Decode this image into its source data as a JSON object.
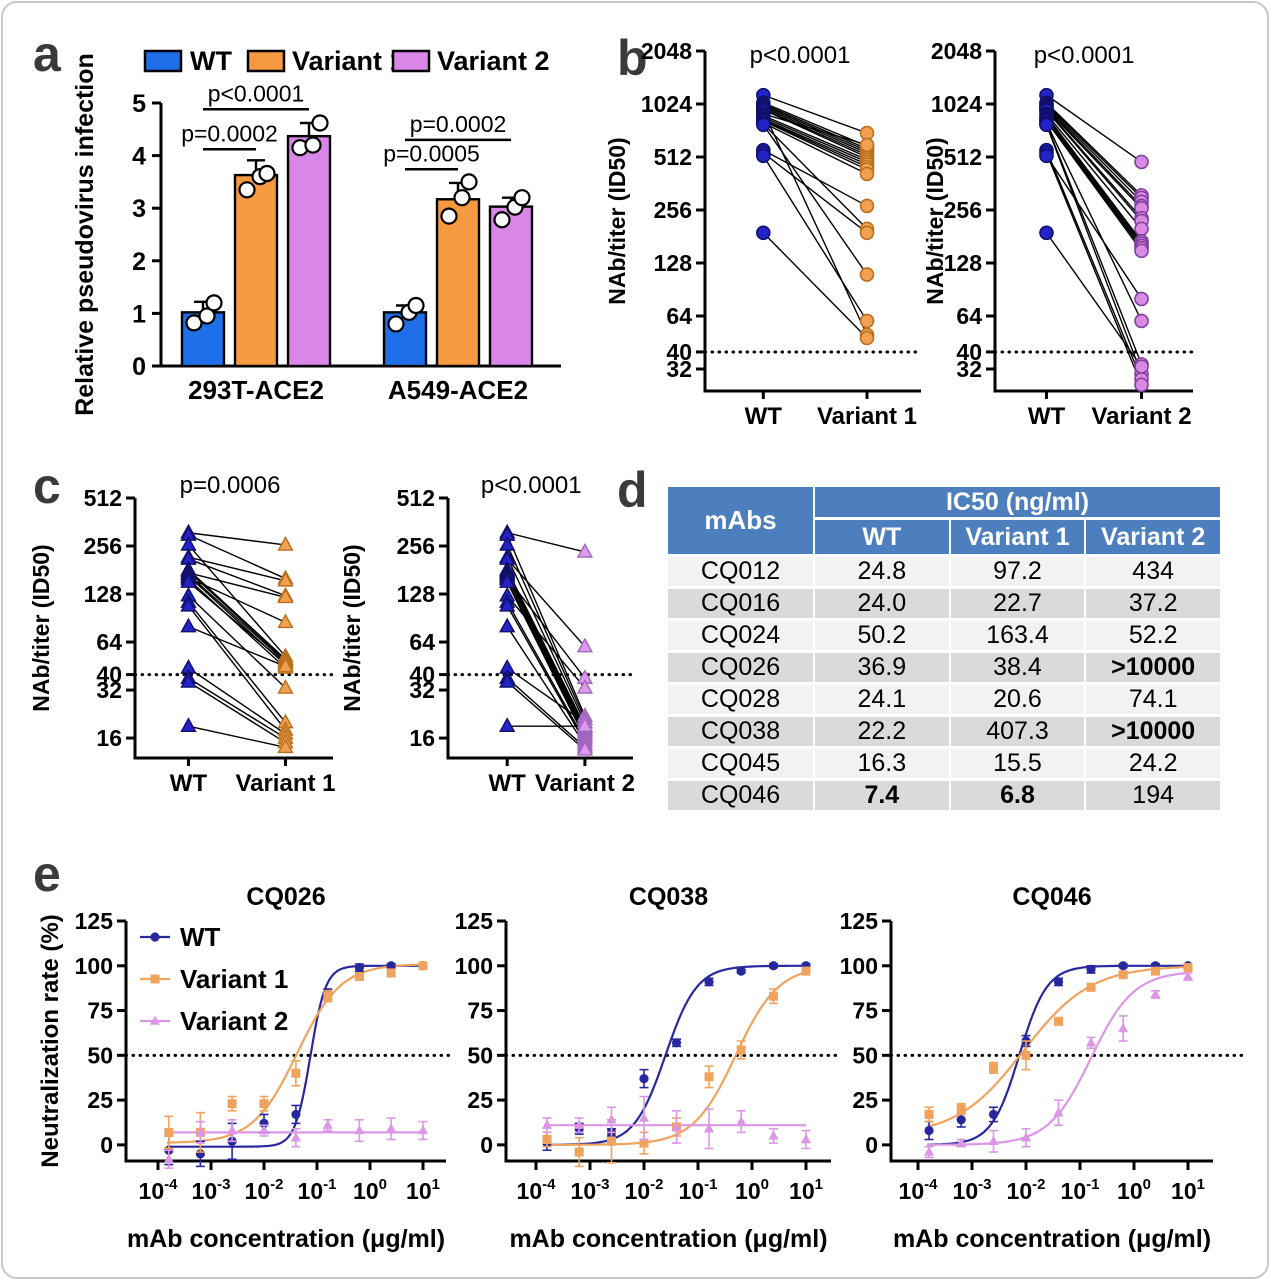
{
  "figure": {
    "letters": {
      "a": "a",
      "b": "b",
      "c": "c",
      "d": "d",
      "e": "e"
    },
    "border_color": "#c9c9c9"
  },
  "palette": {
    "wt_bar": "#1E6FE8",
    "v1_bar": "#F59A40",
    "v2_bar": "#D886E8",
    "navy_dot": "#2323C8",
    "navy_stroke": "#10106A",
    "orange_dot": "#F0A050",
    "orange_stroke": "#B8701E",
    "violet_dot": "#D98BE4",
    "violet_stroke": "#7E3F9D",
    "e_navy": "#28289E",
    "e_orange": "#F0A35C",
    "e_violet": "#DB97E6",
    "table_header": "#4D7EBD",
    "row_light": "#F2F2F2",
    "row_dark": "#DADADA"
  },
  "chart_data": [
    {
      "id": "a",
      "type": "bar",
      "ylabel": "Relative pseudovirus infection",
      "ylim": [
        0,
        5
      ],
      "yticks": [
        0,
        1,
        2,
        3,
        4,
        5
      ],
      "categories": [
        "293T-ACE2",
        "A549-ACE2"
      ],
      "series": [
        {
          "name": "WT",
          "color": "#1E6FE8",
          "values": [
            1.02,
            1.02
          ],
          "sd": [
            0.2,
            0.13
          ],
          "points": [
            [
              0.82,
              0.95,
              1.2
            ],
            [
              0.8,
              1.02,
              1.15
            ]
          ]
        },
        {
          "name": "Variant 1",
          "color": "#F59A40",
          "values": [
            3.63,
            3.17
          ],
          "sd": [
            0.28,
            0.31
          ],
          "points": [
            [
              3.35,
              3.6,
              3.66
            ],
            [
              2.85,
              3.2,
              3.5
            ]
          ]
        },
        {
          "name": "Variant 2",
          "color": "#D886E8",
          "values": [
            4.37,
            3.03
          ],
          "sd": [
            0.25,
            0.17
          ],
          "points": [
            [
              4.15,
              4.2,
              4.62
            ],
            [
              2.78,
              3.02,
              3.2
            ]
          ]
        }
      ],
      "comparisons": [
        {
          "group": 0,
          "s1": 0,
          "s2": 1,
          "y": 4.12,
          "label": "p=0.0002"
        },
        {
          "group": 0,
          "s1": 0,
          "s2": 2,
          "y": 4.88,
          "label": "p<0.0001"
        },
        {
          "group": 1,
          "s1": 0,
          "s2": 1,
          "y": 3.74,
          "label": "p=0.0005"
        },
        {
          "group": 1,
          "s1": 0,
          "s2": 2,
          "y": 4.3,
          "label": "p=0.0002"
        }
      ]
    },
    {
      "id": "b1",
      "type": "paired",
      "p_label": "p<0.0001",
      "ylabel": "NAb/titer (ID50)",
      "show_ylabel": true,
      "yticks": [
        2048,
        1024,
        512,
        256,
        128,
        64,
        40,
        32
      ],
      "ymax": 2048,
      "ymin": 24,
      "cutoff": 40,
      "categories": [
        "WT",
        "Variant 1"
      ],
      "marker": "circle",
      "left_fill": "#2323C8",
      "left_stroke": "#10106A",
      "right_fill": "#F0A050",
      "right_stroke": "#B8701E",
      "pairs": [
        [
          1150,
          700
        ],
        [
          1040,
          590
        ],
        [
          1020,
          570
        ],
        [
          1000,
          555
        ],
        [
          980,
          540
        ],
        [
          960,
          525
        ],
        [
          950,
          510
        ],
        [
          930,
          50
        ],
        [
          900,
          600
        ],
        [
          880,
          495
        ],
        [
          860,
          480
        ],
        [
          840,
          465
        ],
        [
          830,
          450
        ],
        [
          820,
          435
        ],
        [
          800,
          410
        ],
        [
          790,
          200
        ],
        [
          780,
          110
        ],
        [
          560,
          270
        ],
        [
          540,
          190
        ],
        [
          520,
          60
        ],
        [
          190,
          48
        ]
      ]
    },
    {
      "id": "b2",
      "type": "paired",
      "p_label": "p<0.0001",
      "ylabel": "NAb/titer (ID50)",
      "show_ylabel": true,
      "yticks": [
        2048,
        1024,
        512,
        256,
        128,
        64,
        40,
        32
      ],
      "ymax": 2048,
      "ymin": 24,
      "cutoff": 40,
      "categories": [
        "WT",
        "Variant 2"
      ],
      "marker": "circle",
      "left_fill": "#2323C8",
      "left_stroke": "#10106A",
      "right_fill": "#D98BE4",
      "right_stroke": "#7E3F9D",
      "pairs": [
        [
          1150,
          480
        ],
        [
          1040,
          310
        ],
        [
          1020,
          300
        ],
        [
          1000,
          285
        ],
        [
          980,
          270
        ],
        [
          960,
          262
        ],
        [
          950,
          230
        ],
        [
          940,
          222
        ],
        [
          900,
          200
        ],
        [
          880,
          170
        ],
        [
          860,
          165
        ],
        [
          840,
          160
        ],
        [
          830,
          155
        ],
        [
          820,
          150
        ],
        [
          800,
          60
        ],
        [
          790,
          34
        ],
        [
          780,
          30
        ],
        [
          560,
          28
        ],
        [
          540,
          26
        ],
        [
          520,
          80
        ],
        [
          190,
          33
        ]
      ]
    },
    {
      "id": "c1",
      "type": "paired",
      "p_label": "p=0.0006",
      "ylabel": "NAb/titer (ID50)",
      "show_ylabel": true,
      "yticks": [
        512,
        256,
        128,
        64,
        40,
        32,
        16
      ],
      "ymax": 512,
      "ymin": 12,
      "cutoff": 40,
      "categories": [
        "WT",
        "Variant 1"
      ],
      "marker": "triangle",
      "left_fill": "#2323C8",
      "left_stroke": "#10106A",
      "right_fill": "#F0A050",
      "right_stroke": "#B8701E",
      "pairs": [
        [
          310,
          260
        ],
        [
          300,
          160
        ],
        [
          260,
          52
        ],
        [
          218,
          155
        ],
        [
          212,
          125
        ],
        [
          182,
          50
        ],
        [
          178,
          49
        ],
        [
          174,
          122
        ],
        [
          170,
          48
        ],
        [
          166,
          46
        ],
        [
          162,
          85
        ],
        [
          158,
          44
        ],
        [
          152,
          47
        ],
        [
          125,
          33
        ],
        [
          114,
          20
        ],
        [
          108,
          18
        ],
        [
          80,
          45
        ],
        [
          44,
          17
        ],
        [
          38,
          16
        ],
        [
          36,
          15
        ],
        [
          19,
          14
        ]
      ]
    },
    {
      "id": "c2",
      "type": "paired",
      "p_label": "p<0.0001",
      "ylabel": "NAb/titer (ID50)",
      "show_ylabel": true,
      "yticks": [
        512,
        256,
        128,
        64,
        40,
        32,
        16
      ],
      "ymax": 512,
      "ymin": 12,
      "cutoff": 40,
      "categories": [
        "WT",
        "Variant 2"
      ],
      "marker": "triangle",
      "left_fill": "#2323C8",
      "left_stroke": "#10106A",
      "right_fill": "#DC9BEA",
      "right_stroke": "#A066C0",
      "pairs": [
        [
          310,
          235
        ],
        [
          300,
          22
        ],
        [
          260,
          21
        ],
        [
          218,
          20
        ],
        [
          212,
          60
        ],
        [
          182,
          19
        ],
        [
          178,
          18.5
        ],
        [
          174,
          18
        ],
        [
          170,
          17.5
        ],
        [
          166,
          17
        ],
        [
          162,
          38
        ],
        [
          158,
          16.5
        ],
        [
          152,
          16
        ],
        [
          125,
          33
        ],
        [
          114,
          15.5
        ],
        [
          108,
          15
        ],
        [
          80,
          14.5
        ],
        [
          44,
          20
        ],
        [
          38,
          14
        ],
        [
          36,
          13.5
        ],
        [
          19,
          19
        ]
      ]
    },
    {
      "id": "d",
      "type": "table",
      "col0": "mAbs",
      "header_group": "IC50 (ng/ml)",
      "subheaders": [
        "WT",
        "Variant 1",
        "Variant 2"
      ],
      "rows": [
        {
          "mab": "CQ012",
          "wt": "24.8",
          "v1": "97.2",
          "v2": "434",
          "bold": []
        },
        {
          "mab": "CQ016",
          "wt": "24.0",
          "v1": "22.7",
          "v2": "37.2",
          "bold": []
        },
        {
          "mab": "CQ024",
          "wt": "50.2",
          "v1": "163.4",
          "v2": "52.2",
          "bold": []
        },
        {
          "mab": "CQ026",
          "wt": "36.9",
          "v1": "38.4",
          "v2": ">10000",
          "bold": [
            "v2"
          ]
        },
        {
          "mab": "CQ028",
          "wt": "24.1",
          "v1": "20.6",
          "v2": "74.1",
          "bold": []
        },
        {
          "mab": "CQ038",
          "wt": "22.2",
          "v1": "407.3",
          "v2": ">10000",
          "bold": [
            "v2"
          ]
        },
        {
          "mab": "CQ045",
          "wt": "16.3",
          "v1": "15.5",
          "v2": "24.2",
          "bold": []
        },
        {
          "mab": "CQ046",
          "wt": "7.4",
          "v1": "6.8",
          "v2": "194",
          "bold": [
            "wt",
            "v1"
          ]
        }
      ]
    },
    {
      "id": "e1",
      "type": "line",
      "title": "CQ026",
      "ylabel": "Neutralization rate (%)",
      "show_ylabel": true,
      "legend": true,
      "xlabel": "mAb concentration (μg/ml)",
      "yticks": [
        0,
        25,
        50,
        75,
        100,
        125
      ],
      "ylim": [
        -9,
        125
      ],
      "xticks_exp": [
        -4,
        -3,
        -2,
        -1,
        0,
        1
      ],
      "x": [
        0.00016,
        0.00063,
        0.0025,
        0.01,
        0.04,
        0.16,
        0.63,
        2.5,
        10
      ],
      "series": [
        {
          "name": "WT",
          "color": "#28289E",
          "marker": "circle",
          "y": [
            -3,
            -5,
            2,
            12,
            17,
            84,
            99,
            100,
            100
          ],
          "err": [
            8,
            7,
            10,
            5,
            5,
            3,
            2,
            1,
            1
          ],
          "curve": {
            "bottom": -1,
            "top": 100,
            "ec50": 0.075,
            "hill": 3.0
          }
        },
        {
          "name": "Variant 1",
          "color": "#F0A35C",
          "marker": "square",
          "y": [
            7,
            7,
            23,
            23,
            40,
            83,
            94,
            96,
            100
          ],
          "err": [
            9,
            11,
            4,
            4,
            7,
            3,
            2,
            2,
            1
          ],
          "curve": {
            "bottom": 1,
            "top": 101,
            "ec50": 0.042,
            "hill": 1.05
          }
        },
        {
          "name": "Variant 2",
          "color": "#DB97E6",
          "marker": "triangle",
          "y": [
            -8,
            7,
            8,
            8,
            4,
            11,
            8,
            9,
            8
          ],
          "err": [
            5,
            6,
            6,
            3,
            5,
            3,
            6,
            6,
            5
          ],
          "curve": {
            "flat": 7
          }
        }
      ]
    },
    {
      "id": "e2",
      "type": "line",
      "title": "CQ038",
      "ylabel": "Neutralization rate (%)",
      "show_ylabel": false,
      "legend": false,
      "xlabel": "mAb concentration (μg/ml)",
      "yticks": [
        0,
        25,
        50,
        75,
        100,
        125
      ],
      "ylim": [
        -9,
        125
      ],
      "xticks_exp": [
        -4,
        -3,
        -2,
        -1,
        0,
        1
      ],
      "x": [
        0.00016,
        0.00063,
        0.0025,
        0.01,
        0.04,
        0.16,
        0.63,
        2.5,
        10
      ],
      "series": [
        {
          "name": "WT",
          "color": "#28289E",
          "marker": "circle",
          "y": [
            1,
            9,
            7,
            37,
            57,
            91,
            97,
            100,
            100
          ],
          "err": [
            4,
            3,
            2,
            5,
            2,
            2,
            1,
            1,
            1
          ],
          "curve": {
            "bottom": 0,
            "top": 100,
            "ec50": 0.025,
            "hill": 1.5
          }
        },
        {
          "name": "Variant 1",
          "color": "#F0A35C",
          "marker": "square",
          "y": [
            3,
            -4,
            2,
            1,
            10,
            38,
            53,
            83,
            97
          ],
          "err": [
            4,
            8,
            12,
            6,
            5,
            6,
            5,
            4,
            2
          ],
          "curve": {
            "bottom": 0,
            "top": 100,
            "ec50": 0.5,
            "hill": 1.1
          }
        },
        {
          "name": "Variant 2",
          "color": "#DB97E6",
          "marker": "triangle",
          "y": [
            11,
            11,
            14,
            15,
            10,
            9,
            13,
            5,
            3
          ],
          "err": [
            4,
            4,
            7,
            12,
            9,
            11,
            6,
            4,
            5
          ],
          "curve": {
            "flat": 11
          }
        }
      ]
    },
    {
      "id": "e3",
      "type": "line",
      "title": "CQ046",
      "ylabel": "Neutralization rate (%)",
      "show_ylabel": false,
      "legend": false,
      "xlabel": "mAb concentration (μg/ml)",
      "yticks": [
        0,
        25,
        50,
        75,
        100,
        125
      ],
      "ylim": [
        -9,
        125
      ],
      "xticks_exp": [
        -4,
        -3,
        -2,
        -1,
        0,
        1
      ],
      "x": [
        0.00016,
        0.00063,
        0.0025,
        0.01,
        0.04,
        0.16,
        0.63,
        2.5,
        10
      ],
      "series": [
        {
          "name": "WT",
          "color": "#28289E",
          "marker": "circle",
          "y": [
            8,
            14,
            17,
            58,
            91,
            98,
            100,
            100,
            100
          ],
          "err": [
            5,
            4,
            4,
            3,
            2,
            2,
            1,
            1,
            1
          ],
          "curve": {
            "bottom": 0,
            "top": 100,
            "ec50": 0.0075,
            "hill": 1.7
          }
        },
        {
          "name": "Variant 1",
          "color": "#F0A35C",
          "marker": "square",
          "y": [
            17,
            20,
            43,
            50,
            69,
            88,
            95,
            97,
            99
          ],
          "err": [
            4,
            3,
            3,
            8,
            2,
            2,
            1,
            1,
            1
          ],
          "curve": {
            "bottom": 5,
            "top": 100,
            "ec50": 0.009,
            "hill": 0.7
          }
        },
        {
          "name": "Variant 2",
          "color": "#DB97E6",
          "marker": "triangle",
          "y": [
            -4,
            1,
            2,
            4,
            18,
            57,
            65,
            84,
            94
          ],
          "err": [
            3,
            2,
            6,
            5,
            7,
            3,
            7,
            2,
            2
          ],
          "curve": {
            "bottom": 0,
            "top": 97,
            "ec50": 0.16,
            "hill": 1.1
          }
        }
      ]
    }
  ]
}
